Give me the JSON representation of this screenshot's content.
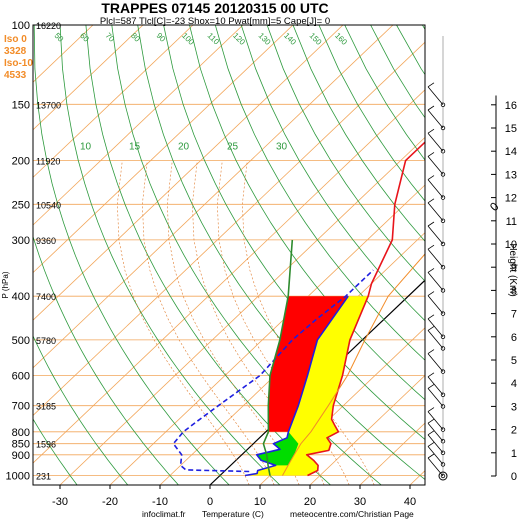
{
  "chart_data": {
    "type": "line",
    "title": "TRAPPES 07145 20120315 00 UTC",
    "subtitle": "Plcl=587 Tlcl[C]=-23 Shox=10 Pwat[mm]=5 Cape[J]= 0",
    "xlabel": "Temperature (C)",
    "credit_left": "infoclimat.fr",
    "credit_right": "meteocentre.com/Christian Page",
    "ylabel": "P (hPa)",
    "y2label": "Height (Km)",
    "xlim": [
      -33,
      48
    ],
    "ylim": [
      1050,
      100
    ],
    "x_ticks": [
      "-30",
      "-20",
      "-10",
      "0",
      "10",
      "20",
      "30",
      "40"
    ],
    "pressure_levels": [
      {
        "label": "100",
        "height": "16220"
      },
      {
        "label": "150",
        "height": "13700"
      },
      {
        "label": "200",
        "height": "11920"
      },
      {
        "label": "250",
        "height": "10540"
      },
      {
        "label": "300",
        "height": "9360"
      },
      {
        "label": "400",
        "height": "7400"
      },
      {
        "label": "500",
        "height": "5780"
      },
      {
        "label": "600",
        "height": ""
      },
      {
        "label": "700",
        "height": "3185"
      },
      {
        "label": "800",
        "height": ""
      },
      {
        "label": "850",
        "height": "1596"
      },
      {
        "label": "900",
        "height": ""
      },
      {
        "label": "1000",
        "height": "231"
      }
    ],
    "freezing_info": [
      {
        "label": "Iso 0",
        "value": "3328"
      },
      {
        "label": "Iso-10",
        "value": "4533"
      }
    ],
    "height_ticks": [
      "0",
      "1",
      "2",
      "3",
      "4",
      "5",
      "6",
      "7",
      "8",
      "9",
      "10",
      "11",
      "12",
      "13",
      "14",
      "15",
      "16"
    ],
    "dry_adiabat_labels": [
      "10",
      "15",
      "20",
      "25",
      "30"
    ],
    "isotherm_labels": [
      "0",
      "10",
      "20",
      "30"
    ],
    "mixing_ratio_labels": [
      "50",
      "60",
      "70",
      "80",
      "90",
      "100",
      "110",
      "120",
      "130",
      "140",
      "150",
      "160"
    ],
    "series": [
      {
        "name": "Temperature",
        "color": "#e8141b",
        "points": [
          [
            1000,
            17.5
          ],
          [
            975,
            18.5
          ],
          [
            950,
            17.5
          ],
          [
            925,
            15.5
          ],
          [
            900,
            13.0
          ],
          [
            880,
            16.5
          ],
          [
            850,
            15.5
          ],
          [
            825,
            13.5
          ],
          [
            800,
            14.5
          ],
          [
            775,
            12.5
          ],
          [
            750,
            10.5
          ],
          [
            700,
            8.0
          ],
          [
            600,
            3.5
          ],
          [
            500,
            -2.5
          ],
          [
            400,
            -8.0
          ],
          [
            375,
            -10.0
          ],
          [
            300,
            -15.0
          ],
          [
            250,
            -22.0
          ],
          [
            200,
            -29.0
          ],
          [
            180,
            -29.0
          ],
          [
            170,
            -26.5
          ],
          [
            155,
            -20.0
          ],
          [
            140,
            -10.0
          ],
          [
            120,
            0.0
          ],
          [
            100,
            8.0
          ]
        ]
      },
      {
        "name": "Dewpoint",
        "color": "#1f1fe0",
        "points": [
          [
            1000,
            5.0
          ],
          [
            990,
            7.0
          ],
          [
            975,
            6.5
          ],
          [
            950,
            9.0
          ],
          [
            925,
            5.0
          ],
          [
            900,
            3.0
          ],
          [
            875,
            6.5
          ],
          [
            850,
            4.0
          ],
          [
            825,
            5.5
          ],
          [
            800,
            4.5
          ],
          [
            700,
            1.0
          ],
          [
            600,
            -3.5
          ],
          [
            500,
            -9.0
          ],
          [
            400,
            -12.0
          ]
        ]
      },
      {
        "name": "Dewpoint (interpolated)",
        "color": "#1f1fe0",
        "points": [
          [
            980,
            5.0
          ],
          [
            972,
            -8.0
          ],
          [
            950,
            -10.0
          ],
          [
            900,
            -12.0
          ],
          [
            850,
            -16.0
          ],
          [
            800,
            -16.5
          ],
          [
            760,
            -16.0
          ],
          [
            700,
            -15.0
          ],
          [
            600,
            -13.0
          ],
          [
            500,
            -14.0
          ],
          [
            450,
            -13.5
          ],
          [
            400,
            -12.5
          ],
          [
            350,
            -12.5
          ]
        ]
      },
      {
        "name": "Parcel",
        "color": "#2e8b2e",
        "points": [
          [
            1000,
            10.0
          ],
          [
            950,
            7.5
          ],
          [
            900,
            5.0
          ],
          [
            850,
            2.0
          ],
          [
            800,
            0.5
          ],
          [
            700,
            -5.0
          ],
          [
            600,
            -11.0
          ],
          [
            500,
            -16.5
          ],
          [
            400,
            -24.0
          ],
          [
            300,
            -35.0
          ]
        ]
      },
      {
        "name": "Virtual temperature",
        "color": "#f28c28",
        "points": [
          [
            1000,
            12.5
          ],
          [
            950,
            11.5
          ],
          [
            900,
            10.5
          ],
          [
            850,
            9.5
          ],
          [
            800,
            9.0
          ],
          [
            700,
            7.0
          ],
          [
            600,
            4.5
          ],
          [
            500,
            0.5
          ],
          [
            400,
            -4.0
          ],
          [
            300,
            -6.0
          ],
          [
            250,
            -5.5
          ],
          [
            200,
            -3.5
          ],
          [
            150,
            1.0
          ]
        ]
      }
    ],
    "fills": [
      {
        "name": "negative-area",
        "color": "#ff0000"
      },
      {
        "name": "positive-area",
        "color": "#ffff00"
      },
      {
        "name": "green-area",
        "color": "#00dd00"
      }
    ],
    "wind_barb_heights_km": [
      0.0,
      0.5,
      1.0,
      1.5,
      2.0,
      3.0,
      3.5,
      4.5,
      5.5,
      6.0,
      7.0,
      8.0,
      9.0,
      10.0,
      11.0,
      12.0,
      13.0,
      14.0,
      15.0,
      16.0
    ]
  }
}
